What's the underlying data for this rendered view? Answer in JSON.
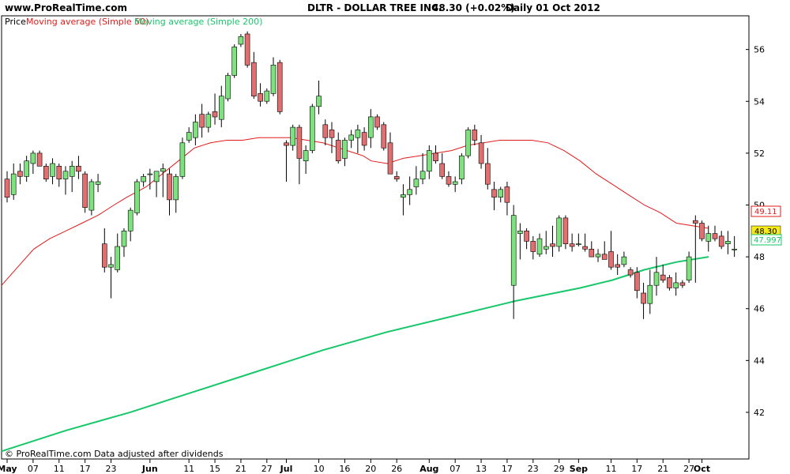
{
  "header": {
    "site": "www.ProRealTime.com",
    "ticker": "DLTR - DOLLAR TREE INC.",
    "quote": "48.30 (+0.02%)",
    "period": "Daily  01 Oct 2012"
  },
  "legend": {
    "price": "Price",
    "ma50": "Moving average (Simple 50)",
    "ma200": "Moving average (Simple 200)"
  },
  "footer": "© ProRealTime.com  Data adjusted after dividends",
  "colors": {
    "up": "#7de27d",
    "down": "#e26f6f",
    "ma50": "#e01b1b",
    "ma200": "#17c76a",
    "frame": "#000000"
  },
  "badges": {
    "ma50": "49.11",
    "last": "48.30",
    "ma200": "47.997"
  },
  "chart_data": {
    "type": "candlestick",
    "title": "DLTR - DOLLAR TREE INC.",
    "ylim": [
      40.2,
      57.3
    ],
    "y_ticks": [
      42,
      44,
      46,
      48,
      50,
      52,
      54,
      56
    ],
    "x_ticks": [
      {
        "label": "May",
        "bold": true,
        "i": 0
      },
      {
        "label": "07",
        "i": 4
      },
      {
        "label": "11",
        "i": 8
      },
      {
        "label": "17",
        "i": 12
      },
      {
        "label": "23",
        "i": 16
      },
      {
        "label": "Jun",
        "bold": true,
        "i": 22
      },
      {
        "label": "11",
        "i": 28
      },
      {
        "label": "15",
        "i": 32
      },
      {
        "label": "21",
        "i": 36
      },
      {
        "label": "27",
        "i": 40
      },
      {
        "label": "Jul",
        "bold": true,
        "i": 43
      },
      {
        "label": "10",
        "i": 48
      },
      {
        "label": "16",
        "i": 52
      },
      {
        "label": "20",
        "i": 56
      },
      {
        "label": "26",
        "i": 60
      },
      {
        "label": "Aug",
        "bold": true,
        "i": 65
      },
      {
        "label": "07",
        "i": 69
      },
      {
        "label": "13",
        "i": 73
      },
      {
        "label": "17",
        "i": 77
      },
      {
        "label": "23",
        "i": 81
      },
      {
        "label": "29",
        "i": 85
      },
      {
        "label": "Sep",
        "bold": true,
        "i": 88
      },
      {
        "label": "11",
        "i": 93
      },
      {
        "label": "17",
        "i": 97
      },
      {
        "label": "21",
        "i": 101
      },
      {
        "label": "27",
        "i": 105
      },
      {
        "label": "Oct",
        "bold": true,
        "i": 107
      }
    ],
    "candles": [
      [
        51.0,
        51.3,
        50.1,
        50.3
      ],
      [
        50.4,
        51.6,
        50.2,
        51.2
      ],
      [
        51.3,
        51.6,
        50.8,
        51.1
      ],
      [
        51.1,
        51.9,
        50.9,
        51.7
      ],
      [
        51.6,
        52.1,
        51.2,
        52.0
      ],
      [
        52.0,
        52.1,
        51.5,
        51.5
      ],
      [
        51.5,
        51.6,
        50.9,
        51.0
      ],
      [
        51.1,
        51.8,
        50.8,
        51.6
      ],
      [
        51.5,
        51.6,
        50.7,
        51.0
      ],
      [
        51.0,
        51.5,
        50.4,
        51.3
      ],
      [
        51.1,
        51.7,
        50.5,
        51.5
      ],
      [
        51.5,
        51.9,
        51.0,
        51.3
      ],
      [
        51.2,
        51.3,
        49.7,
        49.9
      ],
      [
        49.8,
        51.0,
        49.6,
        50.9
      ],
      [
        50.8,
        51.2,
        50.5,
        50.9
      ],
      [
        48.5,
        49.1,
        47.4,
        47.6
      ],
      [
        47.6,
        48.0,
        46.4,
        47.7
      ],
      [
        47.5,
        48.9,
        47.4,
        48.4
      ],
      [
        48.4,
        49.1,
        48.0,
        49.0
      ],
      [
        49.0,
        49.9,
        48.6,
        49.8
      ],
      [
        49.7,
        51.0,
        49.6,
        50.9
      ],
      [
        50.9,
        51.2,
        50.7,
        51.1
      ],
      [
        51.2,
        51.4,
        50.6,
        51.2
      ],
      [
        50.9,
        51.3,
        50.3,
        51.3
      ],
      [
        51.3,
        51.6,
        50.3,
        51.4
      ],
      [
        51.2,
        51.4,
        49.6,
        50.2
      ],
      [
        50.2,
        51.2,
        49.7,
        51.1
      ],
      [
        51.1,
        52.6,
        51.0,
        52.4
      ],
      [
        52.5,
        53.0,
        52.4,
        52.8
      ],
      [
        52.6,
        53.5,
        52.3,
        53.2
      ],
      [
        53.5,
        53.9,
        52.6,
        53.0
      ],
      [
        53.0,
        53.6,
        52.8,
        53.5
      ],
      [
        53.6,
        54.3,
        53.1,
        53.4
      ],
      [
        53.3,
        54.6,
        53.0,
        54.2
      ],
      [
        54.1,
        55.1,
        54.0,
        55.0
      ],
      [
        55.0,
        56.2,
        54.9,
        56.1
      ],
      [
        56.2,
        56.6,
        56.1,
        56.5
      ],
      [
        56.6,
        56.7,
        55.3,
        55.4
      ],
      [
        55.5,
        55.9,
        54.1,
        54.2
      ],
      [
        54.3,
        54.7,
        53.8,
        54.0
      ],
      [
        54.0,
        54.5,
        53.9,
        54.4
      ],
      [
        54.3,
        55.7,
        54.2,
        55.4
      ],
      [
        55.5,
        55.6,
        53.5,
        53.6
      ],
      [
        52.4,
        52.5,
        50.9,
        52.3
      ],
      [
        52.3,
        53.1,
        52.1,
        53.0
      ],
      [
        53.0,
        53.1,
        50.8,
        51.8
      ],
      [
        51.7,
        52.3,
        51.2,
        52.1
      ],
      [
        52.1,
        53.9,
        52.0,
        53.8
      ],
      [
        53.8,
        54.8,
        53.5,
        54.2
      ],
      [
        53.1,
        53.3,
        52.3,
        52.6
      ],
      [
        52.9,
        53.2,
        52.0,
        52.6
      ],
      [
        52.5,
        52.8,
        51.6,
        51.7
      ],
      [
        51.8,
        52.6,
        51.5,
        52.5
      ],
      [
        52.5,
        52.9,
        52.2,
        52.7
      ],
      [
        52.6,
        53.1,
        52.0,
        52.9
      ],
      [
        52.8,
        53.0,
        52.1,
        52.3
      ],
      [
        52.6,
        53.7,
        52.2,
        53.4
      ],
      [
        53.4,
        53.5,
        52.9,
        53.0
      ],
      [
        53.1,
        53.2,
        52.1,
        52.2
      ],
      [
        52.4,
        52.8,
        51.2,
        51.2
      ],
      [
        51.1,
        51.3,
        50.9,
        51.0
      ],
      [
        50.3,
        50.8,
        49.6,
        50.4
      ],
      [
        50.4,
        51.1,
        50.0,
        50.6
      ],
      [
        50.7,
        51.5,
        50.4,
        51.0
      ],
      [
        51.0,
        52.0,
        50.8,
        51.3
      ],
      [
        51.3,
        52.3,
        51.0,
        52.1
      ],
      [
        52.0,
        52.3,
        51.6,
        51.7
      ],
      [
        51.6,
        52.0,
        51.0,
        51.1
      ],
      [
        51.1,
        51.3,
        50.7,
        50.8
      ],
      [
        50.8,
        51.1,
        50.5,
        50.9
      ],
      [
        51.0,
        52.0,
        50.8,
        51.9
      ],
      [
        51.9,
        53.0,
        51.8,
        52.9
      ],
      [
        52.9,
        53.1,
        52.3,
        52.5
      ],
      [
        52.4,
        52.7,
        51.4,
        51.6
      ],
      [
        51.6,
        52.2,
        50.6,
        50.8
      ],
      [
        50.6,
        50.9,
        49.8,
        50.3
      ],
      [
        50.3,
        50.7,
        50.1,
        50.6
      ],
      [
        50.7,
        50.9,
        49.6,
        50.1
      ],
      [
        46.9,
        50.0,
        45.6,
        49.6
      ],
      [
        48.9,
        49.3,
        47.9,
        49.0
      ],
      [
        49.0,
        49.1,
        48.3,
        48.6
      ],
      [
        48.6,
        48.8,
        47.9,
        48.2
      ],
      [
        48.1,
        48.9,
        48.0,
        48.7
      ],
      [
        48.3,
        49.0,
        48.1,
        48.4
      ],
      [
        48.5,
        49.2,
        48.0,
        48.4
      ],
      [
        48.4,
        49.6,
        48.2,
        49.5
      ],
      [
        49.5,
        49.6,
        48.3,
        48.5
      ],
      [
        48.5,
        48.9,
        48.2,
        48.4
      ],
      [
        48.5,
        48.9,
        48.4,
        48.5
      ],
      [
        48.4,
        48.9,
        48.2,
        48.3
      ],
      [
        48.3,
        48.6,
        48.0,
        48.0
      ],
      [
        48.0,
        48.3,
        47.8,
        48.1
      ],
      [
        48.1,
        48.6,
        47.9,
        47.9
      ],
      [
        48.2,
        49.0,
        47.5,
        47.6
      ],
      [
        47.7,
        48.1,
        47.3,
        47.6
      ],
      [
        47.7,
        48.2,
        47.6,
        48.0
      ],
      [
        47.5,
        47.6,
        47.2,
        47.3
      ],
      [
        47.4,
        47.6,
        46.4,
        46.7
      ],
      [
        46.6,
        47.0,
        45.6,
        46.2
      ],
      [
        46.2,
        47.5,
        45.8,
        46.9
      ],
      [
        46.9,
        48.0,
        46.5,
        47.4
      ],
      [
        47.3,
        47.7,
        47.0,
        47.1
      ],
      [
        47.2,
        47.3,
        46.7,
        46.8
      ],
      [
        46.8,
        47.4,
        46.5,
        47.0
      ],
      [
        47.0,
        47.1,
        46.8,
        46.9
      ],
      [
        47.1,
        48.2,
        47.0,
        48.0
      ],
      [
        49.4,
        49.6,
        47.0,
        49.3
      ],
      [
        49.3,
        49.4,
        48.6,
        48.7
      ],
      [
        48.6,
        49.2,
        48.2,
        48.9
      ],
      [
        48.9,
        49.2,
        48.6,
        48.7
      ],
      [
        48.8,
        49.0,
        48.3,
        48.4
      ],
      [
        48.5,
        49.0,
        48.1,
        48.6
      ],
      [
        48.3,
        48.8,
        48.0,
        48.3
      ]
    ],
    "series": [
      {
        "name": "Moving average (Simple 50)",
        "points": [
          [
            0,
            46.9
          ],
          [
            10,
            47.6
          ],
          [
            20,
            48.3
          ],
          [
            30,
            48.7
          ],
          [
            40,
            49.0
          ],
          [
            50,
            49.3
          ],
          [
            60,
            49.6
          ],
          [
            70,
            50.0
          ],
          [
            78,
            50.3
          ],
          [
            90,
            50.7
          ],
          [
            100,
            51.2
          ],
          [
            110,
            51.7
          ],
          [
            120,
            52.2
          ],
          [
            130,
            52.4
          ],
          [
            140,
            52.5
          ],
          [
            150,
            52.5
          ],
          [
            160,
            52.6
          ],
          [
            170,
            52.6
          ],
          [
            180,
            52.6
          ],
          [
            190,
            52.5
          ],
          [
            200,
            52.4
          ],
          [
            210,
            52.2
          ],
          [
            220,
            52.0
          ],
          [
            225,
            51.9
          ],
          [
            230,
            51.7
          ],
          [
            240,
            51.6
          ],
          [
            250,
            51.8
          ],
          [
            260,
            51.9
          ],
          [
            270,
            52.0
          ],
          [
            280,
            52.1
          ],
          [
            290,
            52.3
          ],
          [
            300,
            52.4
          ],
          [
            310,
            52.5
          ],
          [
            320,
            52.5
          ],
          [
            330,
            52.5
          ],
          [
            340,
            52.4
          ],
          [
            350,
            52.1
          ],
          [
            360,
            51.7
          ],
          [
            370,
            51.2
          ],
          [
            380,
            50.8
          ],
          [
            390,
            50.4
          ],
          [
            400,
            50.0
          ],
          [
            410,
            49.7
          ],
          [
            415,
            49.5
          ],
          [
            420,
            49.3
          ],
          [
            430,
            49.2
          ],
          [
            440,
            49.1
          ]
        ],
        "color": "#e01b1b"
      },
      {
        "name": "Moving average (Simple 200)",
        "points": [
          [
            0,
            40.5
          ],
          [
            40,
            41.3
          ],
          [
            80,
            42.0
          ],
          [
            120,
            42.8
          ],
          [
            160,
            43.6
          ],
          [
            200,
            44.4
          ],
          [
            240,
            45.1
          ],
          [
            280,
            45.7
          ],
          [
            320,
            46.3
          ],
          [
            360,
            46.8
          ],
          [
            380,
            47.1
          ],
          [
            400,
            47.5
          ],
          [
            420,
            47.8
          ],
          [
            440,
            48.0
          ]
        ],
        "color": "#17c76a"
      }
    ]
  }
}
